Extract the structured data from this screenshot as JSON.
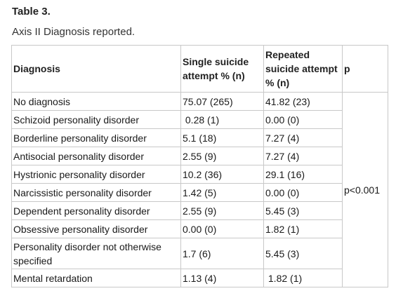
{
  "title": "Table 3.",
  "caption": "Axis II Diagnosis reported.",
  "table": {
    "headers": [
      "Diagnosis",
      "Single suicide attempt % (n)",
      "Repeated suicide attempt % (n)",
      "p"
    ],
    "rows": [
      [
        "No diagnosis",
        "75.07 (265)",
        "41.82 (23)"
      ],
      [
        "Schizoid personality disorder",
        " 0.28 (1)",
        "0.00 (0)"
      ],
      [
        "Borderline personality disorder",
        "5.1 (18)",
        "7.27 (4)"
      ],
      [
        "Antisocial personality disorder",
        "2.55 (9)",
        "7.27 (4)"
      ],
      [
        "Hystrionic personality disorder",
        "10.2 (36)",
        "29.1 (16)"
      ],
      [
        "Narcissistic personality disorder",
        "1.42 (5)",
        "0.00 (0)"
      ],
      [
        "Dependent personality disorder",
        "2.55 (9)",
        "5.45 (3)"
      ],
      [
        "Obsessive personality disorder",
        "0.00 (0)",
        "1.82 (1)"
      ],
      [
        "Personality disorder not otherwise specified",
        "1.7 (6)",
        "5.45 (3)"
      ],
      [
        "Mental retardation",
        "1.13 (4)",
        " 1.82 (1)"
      ]
    ],
    "p_value": "p<0.001"
  }
}
